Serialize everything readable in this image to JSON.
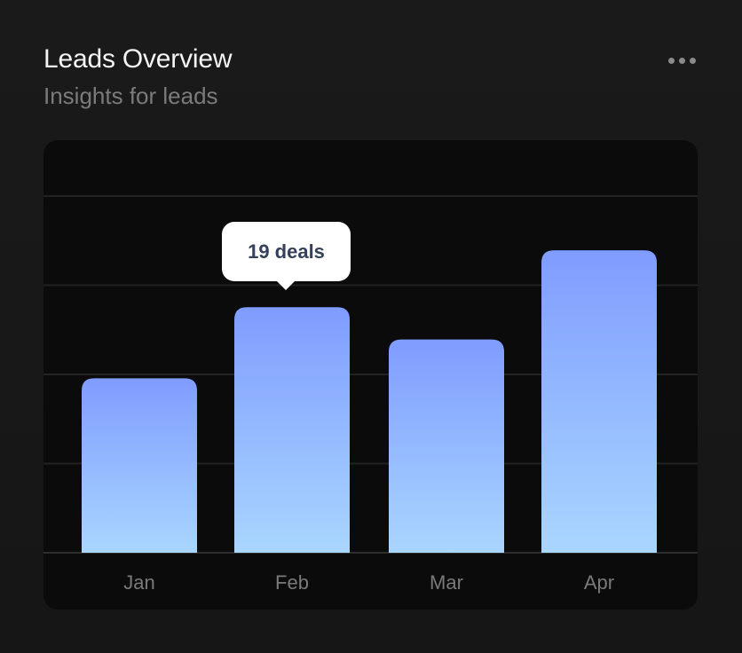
{
  "header": {
    "title": "Leads Overview",
    "subtitle": "Insights for leads",
    "menu_icon": "more-horizontal-icon"
  },
  "tooltip": {
    "label": "19 deals"
  },
  "colors": {
    "bar_top": "#7f9cff",
    "bar_bottom": "#a9d6ff",
    "background": "#0b0b0b"
  },
  "chart_data": {
    "type": "bar",
    "categories": [
      "Jan",
      "Feb",
      "Mar",
      "Apr"
    ],
    "values": [
      13.5,
      19,
      16.5,
      23.4
    ],
    "unit": "deals",
    "ylim": [
      0,
      27.6
    ],
    "grid": true,
    "highlighted": "Feb"
  }
}
